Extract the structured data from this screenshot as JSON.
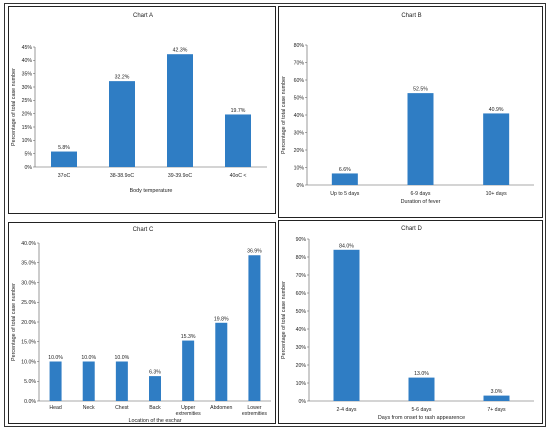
{
  "chart_data": [
    {
      "type": "bar",
      "title": "Chart A",
      "categories": [
        "37oC",
        "38-38.9oC",
        "39-39.9oC",
        "40oC <"
      ],
      "values": [
        5.8,
        32.2,
        42.3,
        19.7
      ],
      "value_labels": [
        "5.8%",
        "32.2%",
        "42.3%",
        "19.7%"
      ],
      "xlabel": "Body temperature",
      "ylabel": "Percentage of total case number",
      "ylim": [
        0,
        45
      ],
      "yticks": [
        0,
        5,
        10,
        15,
        20,
        25,
        30,
        35,
        40,
        45
      ],
      "ytick_labels": [
        "0%",
        "5%",
        "10%",
        "15%",
        "20%",
        "25%",
        "30%",
        "35%",
        "40%",
        "45%"
      ],
      "bar_color": "#2f7dc4",
      "grid": false
    },
    {
      "type": "bar",
      "title": "Chart B",
      "categories": [
        "Up to 5 days",
        "6-9 days",
        "10+ days"
      ],
      "values": [
        6.6,
        52.5,
        40.9
      ],
      "value_labels": [
        "6.6%",
        "52.5%",
        "40.9%"
      ],
      "xlabel": "Duration of fever",
      "ylabel": "Percentage of total case number",
      "ylim": [
        0,
        80
      ],
      "yticks": [
        0,
        10,
        20,
        30,
        40,
        50,
        60,
        70,
        80
      ],
      "ytick_labels": [
        "0%",
        "10%",
        "20%",
        "30%",
        "40%",
        "50%",
        "60%",
        "70%",
        "80%"
      ],
      "bar_color": "#2f7dc4",
      "grid": false
    },
    {
      "type": "bar",
      "title": "Chart C",
      "categories": [
        "Head",
        "Neck",
        "Chest",
        "Back",
        "Upper extremities",
        "Abdomen",
        "Lower extremities"
      ],
      "category_lines": [
        [
          "Head"
        ],
        [
          "Neck"
        ],
        [
          "Chest"
        ],
        [
          "Back"
        ],
        [
          "Upper",
          "extremities"
        ],
        [
          "Abdomen"
        ],
        [
          "Lower",
          "extremities"
        ]
      ],
      "values": [
        10.0,
        10.0,
        10.0,
        6.3,
        15.3,
        19.8,
        36.9
      ],
      "value_labels": [
        "10.0%",
        "10.0%",
        "10.0%",
        "6.3%",
        "15.3%",
        "19.8%",
        "36.9%"
      ],
      "xlabel": "Location of the eschar",
      "ylabel": "Percentage of total case number",
      "ylim": [
        0,
        40
      ],
      "yticks": [
        0,
        5,
        10,
        15,
        20,
        25,
        30,
        35,
        40
      ],
      "ytick_labels": [
        "0.0%",
        "5.0%",
        "10.0%",
        "15.0%",
        "20.0%",
        "25.0%",
        "30.0%",
        "35.0%",
        "40.0%"
      ],
      "bar_color": "#2f7dc4",
      "grid": false
    },
    {
      "type": "bar",
      "title": "Chart D",
      "categories": [
        "2-4 days",
        "5-6 days",
        "7+ days"
      ],
      "values": [
        84.0,
        13.0,
        3.0
      ],
      "value_labels": [
        "84.0%",
        "13.0%",
        "3.0%"
      ],
      "xlabel": "Days from onset to rash appearence",
      "ylabel": "Percentage of total case number",
      "ylim": [
        0,
        90
      ],
      "yticks": [
        0,
        10,
        20,
        30,
        40,
        50,
        60,
        70,
        80,
        90
      ],
      "ytick_labels": [
        "0%",
        "10%",
        "20%",
        "30%",
        "40%",
        "50%",
        "60%",
        "70%",
        "80%",
        "90%"
      ],
      "bar_color": "#2f7dc4",
      "grid": false
    }
  ]
}
